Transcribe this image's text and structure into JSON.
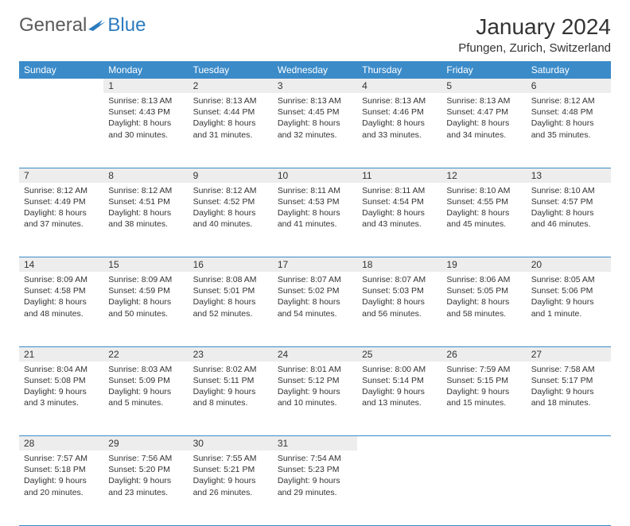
{
  "logo": {
    "text1": "General",
    "text2": "Blue"
  },
  "title": "January 2024",
  "location": "Pfungen, Zurich, Switzerland",
  "colors": {
    "header_bg": "#3b8bc9",
    "header_text": "#ffffff",
    "daynum_bg": "#ededed",
    "border": "#3b8bc9",
    "logo_gray": "#5a5a5a",
    "logo_blue": "#2b7bbf",
    "text": "#333333",
    "background": "#ffffff"
  },
  "typography": {
    "title_fontsize": 28,
    "location_fontsize": 15,
    "weekday_fontsize": 12,
    "daynum_fontsize": 12,
    "content_fontsize": 10.5
  },
  "weekdays": [
    "Sunday",
    "Monday",
    "Tuesday",
    "Wednesday",
    "Thursday",
    "Friday",
    "Saturday"
  ],
  "weeks": [
    [
      null,
      {
        "n": "1",
        "sunrise": "8:13 AM",
        "sunset": "4:43 PM",
        "daylight": "8 hours and 30 minutes."
      },
      {
        "n": "2",
        "sunrise": "8:13 AM",
        "sunset": "4:44 PM",
        "daylight": "8 hours and 31 minutes."
      },
      {
        "n": "3",
        "sunrise": "8:13 AM",
        "sunset": "4:45 PM",
        "daylight": "8 hours and 32 minutes."
      },
      {
        "n": "4",
        "sunrise": "8:13 AM",
        "sunset": "4:46 PM",
        "daylight": "8 hours and 33 minutes."
      },
      {
        "n": "5",
        "sunrise": "8:13 AM",
        "sunset": "4:47 PM",
        "daylight": "8 hours and 34 minutes."
      },
      {
        "n": "6",
        "sunrise": "8:12 AM",
        "sunset": "4:48 PM",
        "daylight": "8 hours and 35 minutes."
      }
    ],
    [
      {
        "n": "7",
        "sunrise": "8:12 AM",
        "sunset": "4:49 PM",
        "daylight": "8 hours and 37 minutes."
      },
      {
        "n": "8",
        "sunrise": "8:12 AM",
        "sunset": "4:51 PM",
        "daylight": "8 hours and 38 minutes."
      },
      {
        "n": "9",
        "sunrise": "8:12 AM",
        "sunset": "4:52 PM",
        "daylight": "8 hours and 40 minutes."
      },
      {
        "n": "10",
        "sunrise": "8:11 AM",
        "sunset": "4:53 PM",
        "daylight": "8 hours and 41 minutes."
      },
      {
        "n": "11",
        "sunrise": "8:11 AM",
        "sunset": "4:54 PM",
        "daylight": "8 hours and 43 minutes."
      },
      {
        "n": "12",
        "sunrise": "8:10 AM",
        "sunset": "4:55 PM",
        "daylight": "8 hours and 45 minutes."
      },
      {
        "n": "13",
        "sunrise": "8:10 AM",
        "sunset": "4:57 PM",
        "daylight": "8 hours and 46 minutes."
      }
    ],
    [
      {
        "n": "14",
        "sunrise": "8:09 AM",
        "sunset": "4:58 PM",
        "daylight": "8 hours and 48 minutes."
      },
      {
        "n": "15",
        "sunrise": "8:09 AM",
        "sunset": "4:59 PM",
        "daylight": "8 hours and 50 minutes."
      },
      {
        "n": "16",
        "sunrise": "8:08 AM",
        "sunset": "5:01 PM",
        "daylight": "8 hours and 52 minutes."
      },
      {
        "n": "17",
        "sunrise": "8:07 AM",
        "sunset": "5:02 PM",
        "daylight": "8 hours and 54 minutes."
      },
      {
        "n": "18",
        "sunrise": "8:07 AM",
        "sunset": "5:03 PM",
        "daylight": "8 hours and 56 minutes."
      },
      {
        "n": "19",
        "sunrise": "8:06 AM",
        "sunset": "5:05 PM",
        "daylight": "8 hours and 58 minutes."
      },
      {
        "n": "20",
        "sunrise": "8:05 AM",
        "sunset": "5:06 PM",
        "daylight": "9 hours and 1 minute."
      }
    ],
    [
      {
        "n": "21",
        "sunrise": "8:04 AM",
        "sunset": "5:08 PM",
        "daylight": "9 hours and 3 minutes."
      },
      {
        "n": "22",
        "sunrise": "8:03 AM",
        "sunset": "5:09 PM",
        "daylight": "9 hours and 5 minutes."
      },
      {
        "n": "23",
        "sunrise": "8:02 AM",
        "sunset": "5:11 PM",
        "daylight": "9 hours and 8 minutes."
      },
      {
        "n": "24",
        "sunrise": "8:01 AM",
        "sunset": "5:12 PM",
        "daylight": "9 hours and 10 minutes."
      },
      {
        "n": "25",
        "sunrise": "8:00 AM",
        "sunset": "5:14 PM",
        "daylight": "9 hours and 13 minutes."
      },
      {
        "n": "26",
        "sunrise": "7:59 AM",
        "sunset": "5:15 PM",
        "daylight": "9 hours and 15 minutes."
      },
      {
        "n": "27",
        "sunrise": "7:58 AM",
        "sunset": "5:17 PM",
        "daylight": "9 hours and 18 minutes."
      }
    ],
    [
      {
        "n": "28",
        "sunrise": "7:57 AM",
        "sunset": "5:18 PM",
        "daylight": "9 hours and 20 minutes."
      },
      {
        "n": "29",
        "sunrise": "7:56 AM",
        "sunset": "5:20 PM",
        "daylight": "9 hours and 23 minutes."
      },
      {
        "n": "30",
        "sunrise": "7:55 AM",
        "sunset": "5:21 PM",
        "daylight": "9 hours and 26 minutes."
      },
      {
        "n": "31",
        "sunrise": "7:54 AM",
        "sunset": "5:23 PM",
        "daylight": "9 hours and 29 minutes."
      },
      null,
      null,
      null
    ]
  ],
  "labels": {
    "sunrise": "Sunrise:",
    "sunset": "Sunset:",
    "daylight": "Daylight:"
  }
}
